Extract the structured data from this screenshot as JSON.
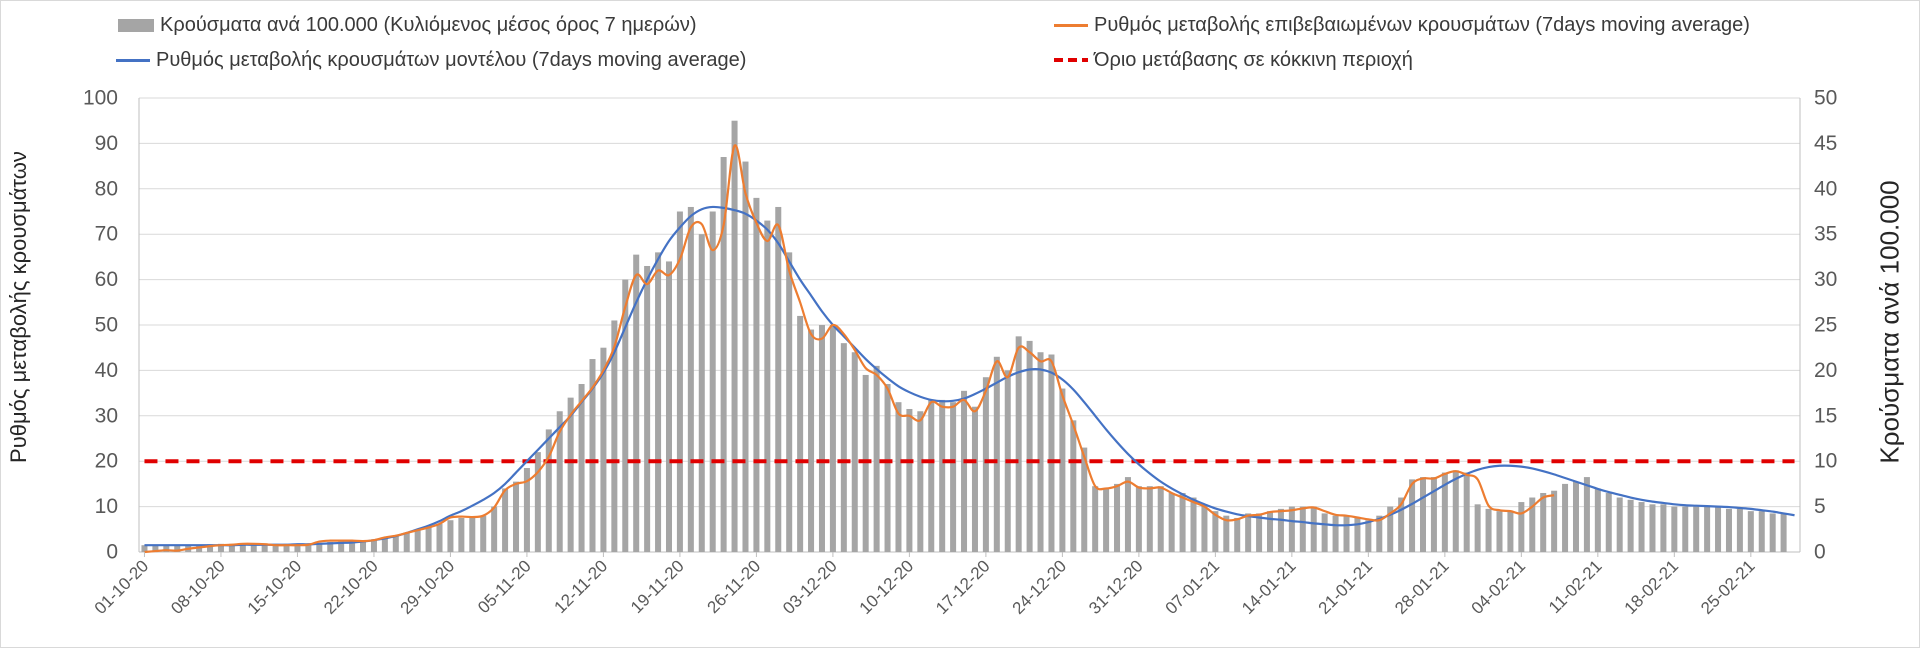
{
  "chart_data": {
    "type": "bar",
    "ylabel": "Ρυθμός μεταβολής κρουσμάτων",
    "ylabel_right": "Κρούσματα ανά 100.000",
    "ylim": [
      0,
      100
    ],
    "ylim_right": [
      0,
      50
    ],
    "yticks": [
      0,
      10,
      20,
      30,
      40,
      50,
      60,
      70,
      80,
      90,
      100
    ],
    "yticks_right": [
      0,
      5,
      10,
      15,
      20,
      25,
      30,
      35,
      40,
      45,
      50
    ],
    "grid": true,
    "legend_position": "top",
    "x_tick_step": 7,
    "x_tick_labels": [
      "01-10-20",
      "08-10-20",
      "15-10-20",
      "22-10-20",
      "29-10-20",
      "05-11-20",
      "12-11-20",
      "19-11-20",
      "26-11-20",
      "03-12-20",
      "10-12-20",
      "17-12-20",
      "24-12-20",
      "31-12-20",
      "07-01-21",
      "14-01-21",
      "21-01-21",
      "28-01-21",
      "04-02-21",
      "11-02-21",
      "18-02-21",
      "25-02-21"
    ],
    "series": [
      {
        "name": "Κρούσματα ανά 100.000 (Κυλιόμενος μέσος όρος 7 ημερών)",
        "type": "bar",
        "axis": "right",
        "color": "#a5a5a5",
        "values": [
          0.75,
          0.75,
          0.75,
          0.75,
          0.75,
          0.8,
          0.85,
          0.9,
          0.9,
          0.95,
          0.95,
          0.95,
          0.9,
          0.9,
          0.9,
          0.9,
          1,
          1.1,
          1.15,
          1.25,
          1.3,
          1.4,
          1.6,
          1.8,
          2.1,
          2.4,
          2.7,
          3.1,
          3.5,
          3.75,
          3.9,
          4,
          5,
          7,
          7.75,
          9.25,
          11,
          13.5,
          15.5,
          17,
          18.5,
          21.25,
          22.5,
          25.5,
          30,
          32.75,
          31.5,
          33,
          32,
          37.5,
          38,
          35,
          37.5,
          43.5,
          47.5,
          43,
          39,
          36.5,
          38,
          33,
          26,
          24.5,
          25,
          25,
          23,
          22,
          19.5,
          20.5,
          18.5,
          16.5,
          15.75,
          15.5,
          16.75,
          16.75,
          16.5,
          17.75,
          16,
          19.25,
          21.5,
          20,
          23.75,
          23.25,
          22,
          21.75,
          18,
          14.5,
          11.5,
          7.25,
          7,
          7.5,
          8.25,
          7.25,
          7.25,
          7.25,
          6.5,
          6.5,
          6,
          5.25,
          4.5,
          4,
          3.75,
          4.25,
          4.25,
          4.5,
          4.75,
          5,
          5,
          5,
          4.25,
          4,
          4,
          3.75,
          3.5,
          4,
          5,
          6,
          8,
          8.25,
          8.25,
          8.75,
          9,
          8.75,
          5.25,
          4.75,
          4.5,
          4.5,
          5.5,
          6,
          6.5,
          6.75,
          7.5,
          7.75,
          8.25,
          7,
          6.5,
          6,
          5.75,
          5.5,
          5.25,
          5.25,
          5,
          5,
          5,
          5,
          5,
          4.75,
          4.75,
          4.5,
          4.5,
          4.25,
          4.25,
          null
        ]
      },
      {
        "name": "Ρυθμός μεταβολής επιβεβαιωμένων κρουσμάτων (7days moving average)",
        "type": "line",
        "axis": "left",
        "color": "#ed7d31",
        "values": [
          0,
          0.2,
          0.4,
          0.3,
          0.7,
          1,
          1.3,
          1.5,
          1.6,
          1.8,
          1.8,
          1.7,
          1.5,
          1.5,
          1.5,
          1.6,
          2.3,
          2.5,
          2.5,
          2.5,
          2.4,
          2.6,
          3.2,
          3.6,
          4.2,
          4.8,
          5.4,
          6.2,
          7.6,
          7.8,
          7.7,
          8,
          9.8,
          13.6,
          15,
          15.6,
          17.6,
          21,
          26.5,
          30.2,
          33.2,
          36.2,
          40,
          45.2,
          54,
          61,
          59,
          62,
          61,
          64.5,
          71.5,
          72.2,
          66.5,
          72,
          89.5,
          79,
          72.5,
          68.5,
          72,
          62,
          55,
          48,
          47,
          50,
          48,
          44.5,
          40.5,
          39,
          36,
          30.5,
          30,
          29,
          33,
          32,
          32,
          33.5,
          31,
          35.5,
          42,
          38.5,
          45,
          44,
          42,
          42,
          34.5,
          28,
          21,
          14.5,
          14,
          14.5,
          15.5,
          14.2,
          14,
          14.2,
          13,
          12,
          11,
          10,
          8.2,
          7,
          7.2,
          8,
          8.2,
          8.8,
          9,
          9.2,
          9.6,
          9.8,
          9,
          8.2,
          8,
          7.6,
          7.2,
          7,
          8.5,
          10.5,
          15,
          16.2,
          16.2,
          17.2,
          17.8,
          17,
          16,
          10.2,
          9.2,
          9,
          8.5,
          10,
          12,
          12.5,
          null,
          null,
          null,
          null,
          null,
          null,
          null,
          null,
          null,
          null,
          null,
          null,
          null,
          null,
          null,
          null,
          null,
          null,
          null,
          null,
          null,
          null
        ]
      },
      {
        "name": "Ρυθμός μεταβολής κρουσμάτων μοντέλου (7days moving average)",
        "type": "line",
        "axis": "left",
        "color": "#4472c4",
        "values": [
          1.5,
          1.5,
          1.5,
          1.5,
          1.5,
          1.5,
          1.5,
          1.5,
          1.5,
          1.6,
          1.6,
          1.6,
          1.6,
          1.6,
          1.7,
          1.7,
          1.8,
          1.9,
          2,
          2.1,
          2.3,
          2.6,
          3,
          3.5,
          4.2,
          5,
          5.8,
          6.8,
          8,
          9,
          10.2,
          11.5,
          13,
          15,
          17.5,
          20,
          22.5,
          25,
          27.5,
          30,
          33,
          36,
          39.5,
          44,
          49.5,
          55,
          60,
          64.5,
          68.5,
          71.5,
          74,
          75.5,
          76,
          75.8,
          75.3,
          74.5,
          73,
          71,
          68,
          64,
          60,
          56.5,
          53,
          50,
          47.5,
          45,
          42.5,
          40.3,
          38.3,
          36.5,
          35.2,
          34.2,
          33.5,
          33.2,
          33.3,
          33.8,
          34.8,
          36,
          37.3,
          38.6,
          39.6,
          40.2,
          40.2,
          39.5,
          38,
          35.8,
          33,
          30,
          27,
          24.2,
          21.6,
          19.3,
          17.3,
          15.5,
          14,
          12.7,
          11.5,
          10.5,
          9.6,
          8.9,
          8.3,
          7.9,
          7.6,
          7.3,
          7.1,
          6.8,
          6.6,
          6.3,
          6.1,
          5.9,
          5.9,
          6.1,
          6.6,
          7.3,
          8.2,
          9.3,
          10.6,
          12,
          13.4,
          14.8,
          16.1,
          17.2,
          18.1,
          18.7,
          19,
          19,
          18.8,
          18.4,
          17.8,
          17.1,
          16.3,
          15.5,
          14.7,
          13.9,
          13.2,
          12.6,
          12,
          11.5,
          11.1,
          10.8,
          10.5,
          10.3,
          10.2,
          10.1,
          10,
          9.9,
          9.7,
          9.5,
          9.2,
          8.9,
          8.5,
          8.1
        ]
      },
      {
        "name": "Όριο μετάβασης σε κόκκινη περιοχή",
        "type": "threshold",
        "axis": "left",
        "color": "#e00000",
        "value": 20
      }
    ]
  }
}
